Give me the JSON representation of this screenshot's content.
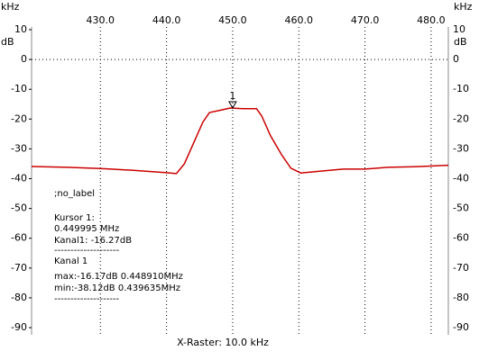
{
  "chart_data": {
    "type": "line",
    "x_unit": "kHz",
    "y_unit": "dB",
    "xlabel": "X-Raster: 10.0 kHz",
    "xlim": [
      419.6,
      482.6
    ],
    "ylim": [
      -92.4,
      10.9
    ],
    "xticks": [
      {
        "value": 430,
        "label": "430.0"
      },
      {
        "value": 440,
        "label": "440.0"
      },
      {
        "value": 450,
        "label": "450.0"
      },
      {
        "value": 460,
        "label": "460.0"
      },
      {
        "value": 470,
        "label": "470.0"
      },
      {
        "value": 480,
        "label": "480.0"
      }
    ],
    "yticks": [
      10,
      0,
      -10,
      -20,
      -30,
      -40,
      -50,
      -60,
      -70,
      -80,
      -90
    ],
    "series": [
      {
        "color": "#cc0000",
        "x": [
          419.6,
          425,
          430,
          435,
          440,
          441.5,
          442.7,
          444.1,
          445.5,
          446.5,
          448.2,
          449.6,
          451.6,
          453.6,
          454.4,
          455.7,
          457.4,
          458.8,
          460.3,
          462.6,
          466.7,
          470,
          473.5,
          477.5,
          482.6
        ],
        "values": [
          -35.9,
          -36.2,
          -36.6,
          -37.2,
          -38,
          -38.3,
          -35,
          -28,
          -21,
          -17.8,
          -17,
          -16.3,
          -16.5,
          -16.5,
          -19,
          -25.5,
          -32,
          -36.5,
          -38.1,
          -37.6,
          -36.8,
          -36.8,
          -36.2,
          -36,
          -35.5
        ]
      }
    ],
    "marker": {
      "label": "1",
      "x": 449.995,
      "y": -16.27
    },
    "annotations": [
      ";no_label",
      "Kursor 1:",
      "0.449995 MHz",
      "Kanal1: -16.27dB",
      "--------------------",
      "Kanal 1",
      "max:-16.17dB 0.448910MHz",
      "min:-38.12dB 0.439635MHz",
      "--------------------"
    ]
  }
}
